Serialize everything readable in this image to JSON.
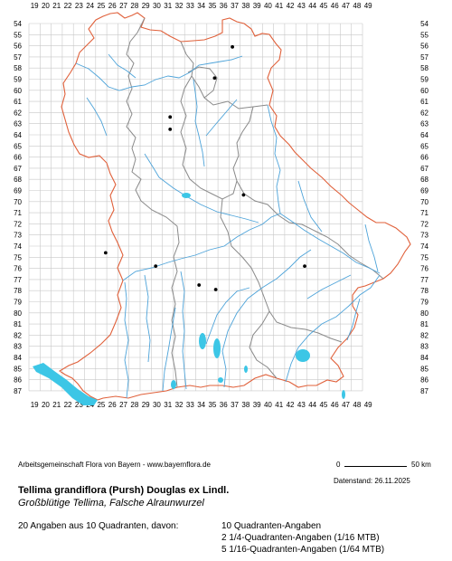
{
  "map": {
    "x_ticks": [
      "19",
      "20",
      "21",
      "22",
      "23",
      "24",
      "25",
      "26",
      "27",
      "28",
      "29",
      "30",
      "31",
      "32",
      "33",
      "34",
      "35",
      "36",
      "37",
      "38",
      "39",
      "40",
      "41",
      "42",
      "43",
      "44",
      "45",
      "46",
      "47",
      "48",
      "49"
    ],
    "y_ticks": [
      "54",
      "55",
      "56",
      "57",
      "58",
      "59",
      "60",
      "61",
      "62",
      "63",
      "64",
      "65",
      "66",
      "67",
      "68",
      "69",
      "70",
      "71",
      "72",
      "73",
      "74",
      "75",
      "76",
      "77",
      "78",
      "79",
      "80",
      "81",
      "82",
      "83",
      "84",
      "85",
      "86",
      "87"
    ],
    "colors": {
      "grid": "#c8c8c8",
      "state_border": "#e0603a",
      "district_border": "#8a8a8a",
      "rivers": "#4da3d9",
      "lakes": "#3cc6e6",
      "records": "#000000"
    },
    "records": [
      {
        "grid_x": 37.3,
        "grid_y": 56.1
      },
      {
        "grid_x": 35.7,
        "grid_y": 58.9
      },
      {
        "grid_x": 31.7,
        "grid_y": 62.4
      },
      {
        "grid_x": 31.7,
        "grid_y": 63.5
      },
      {
        "grid_x": 38.3,
        "grid_y": 69.4
      },
      {
        "grid_x": 25.9,
        "grid_y": 74.6
      },
      {
        "grid_x": 30.4,
        "grid_y": 75.8
      },
      {
        "grid_x": 43.8,
        "grid_y": 75.8
      },
      {
        "grid_x": 34.3,
        "grid_y": 77.5
      },
      {
        "grid_x": 35.8,
        "grid_y": 77.9
      }
    ]
  },
  "credit": "Arbeitsgemeinschaft Flora von Bayern - www.bayernflora.de",
  "scale": {
    "start": "0",
    "end": "50 km"
  },
  "date": "Datenstand: 26.11.2025",
  "title": "Tellima grandiflora (Pursh) Douglas ex Lindl.",
  "subtitle": "Großblütige Tellima, Falsche Alraunwurzel",
  "summary": "20 Angaben aus 10 Quadranten, davon:",
  "stats": [
    "10 Quadranten-Angaben",
    "2 1/4-Quadranten-Angaben (1/16 MTB)",
    "5 1/16-Quadranten-Angaben (1/64 MTB)"
  ]
}
